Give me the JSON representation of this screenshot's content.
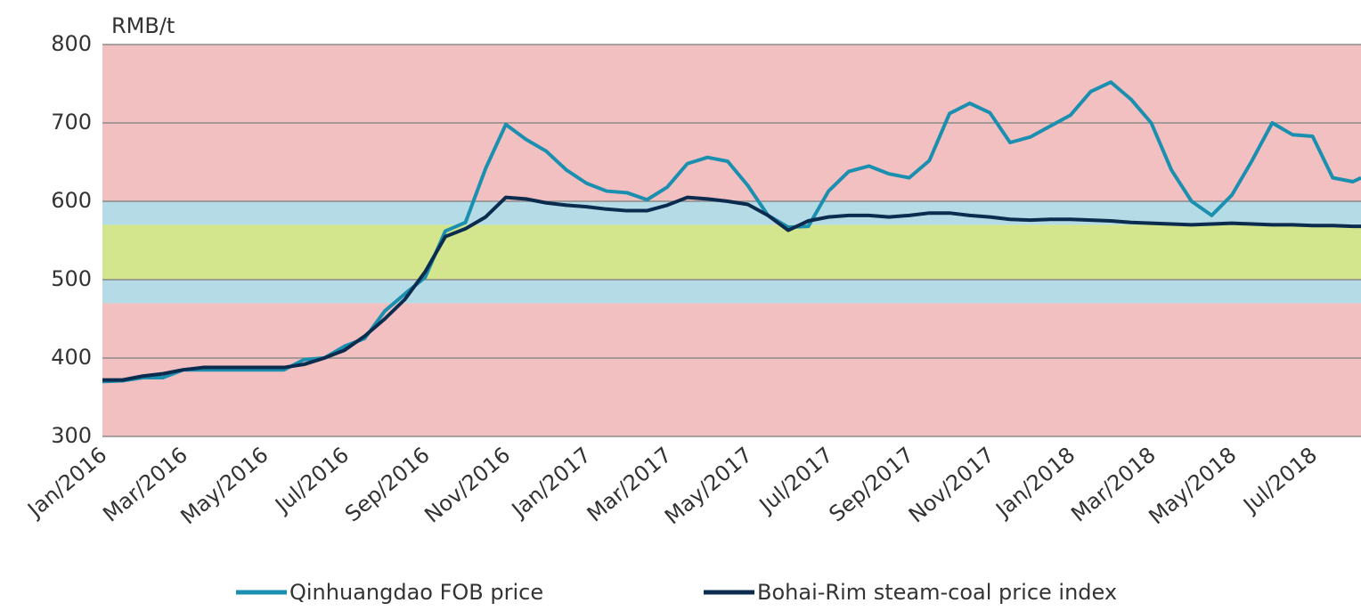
{
  "chart_data": {
    "type": "line",
    "y_label": "RMB/t",
    "x": [
      0,
      0.5,
      1,
      1.5,
      2,
      2.5,
      3,
      3.5,
      4,
      4.5,
      5,
      5.5,
      6,
      6.5,
      7,
      7.5,
      8,
      8.5,
      9,
      9.5,
      10,
      10.5,
      11,
      11.5,
      12,
      12.5,
      13,
      13.5,
      14,
      14.5,
      15,
      15.5,
      16,
      16.5,
      17,
      17.5,
      18,
      18.5,
      19,
      19.5,
      20,
      20.5,
      21,
      21.5,
      22,
      22.5,
      23,
      23.5,
      24,
      24.5,
      25,
      25.5,
      26,
      26.5,
      27,
      27.5,
      28,
      28.5,
      29,
      29.5,
      30,
      30.5,
      31,
      31.2
    ],
    "series": [
      {
        "name": "Qinhuangdao FOB price",
        "color": "#1b8fb0",
        "values": [
          370,
          371,
          375,
          375,
          385,
          385,
          385,
          385,
          385,
          385,
          398,
          400,
          415,
          425,
          460,
          482,
          503,
          562,
          573,
          642,
          698,
          679,
          664,
          640,
          623,
          613,
          611,
          602,
          618,
          648,
          656,
          651,
          620,
          582,
          567,
          568,
          613,
          638,
          645,
          635,
          630,
          652,
          712,
          725,
          713,
          675,
          682,
          696,
          710,
          740,
          752,
          730,
          700,
          640,
          600,
          582,
          608,
          652,
          700,
          685,
          683,
          630,
          625,
          630
        ]
      },
      {
        "name": "Bohai-Rim steam-coal price index",
        "color": "#0b2c4e",
        "values": [
          372,
          372,
          377,
          380,
          385,
          388,
          388,
          388,
          388,
          388,
          392,
          400,
          410,
          428,
          450,
          475,
          510,
          555,
          565,
          580,
          605,
          603,
          598,
          595,
          593,
          590,
          588,
          588,
          595,
          605,
          603,
          600,
          596,
          582,
          563,
          575,
          580,
          582,
          582,
          580,
          582,
          585,
          585,
          582,
          580,
          577,
          576,
          577,
          577,
          576,
          575,
          573,
          572,
          571,
          570,
          571,
          572,
          571,
          570,
          570,
          569,
          569,
          568,
          568
        ]
      }
    ],
    "bands": [
      {
        "from": 300,
        "to": 470,
        "color": "#f2c0c0"
      },
      {
        "from": 470,
        "to": 500,
        "color": "#b5dce6"
      },
      {
        "from": 500,
        "to": 570,
        "color": "#d3e58d"
      },
      {
        "from": 570,
        "to": 600,
        "color": "#b5dce6"
      },
      {
        "from": 600,
        "to": 800,
        "color": "#f2c0c0"
      }
    ],
    "xlim": [
      0,
      31.2
    ],
    "xticks": [
      {
        "value": 0,
        "label": "Jan/2016"
      },
      {
        "value": 2,
        "label": "Mar/2016"
      },
      {
        "value": 4,
        "label": "May/2016"
      },
      {
        "value": 6,
        "label": "Jul/2016"
      },
      {
        "value": 8,
        "label": "Sep/2016"
      },
      {
        "value": 10,
        "label": "Nov/2016"
      },
      {
        "value": 12,
        "label": "Jan/2017"
      },
      {
        "value": 14,
        "label": "Mar/2017"
      },
      {
        "value": 16,
        "label": "May/2017"
      },
      {
        "value": 18,
        "label": "Jul/2017"
      },
      {
        "value": 20,
        "label": "Sep/2017"
      },
      {
        "value": 22,
        "label": "Nov/2017"
      },
      {
        "value": 24,
        "label": "Jan/2018"
      },
      {
        "value": 26,
        "label": "Mar/2018"
      },
      {
        "value": 28,
        "label": "May/2018"
      },
      {
        "value": 30,
        "label": "Jul/2018"
      }
    ],
    "ylim": [
      300,
      800
    ],
    "yticks": [
      300,
      400,
      500,
      600,
      700,
      800
    ],
    "grid": true,
    "legend": "bottom"
  }
}
